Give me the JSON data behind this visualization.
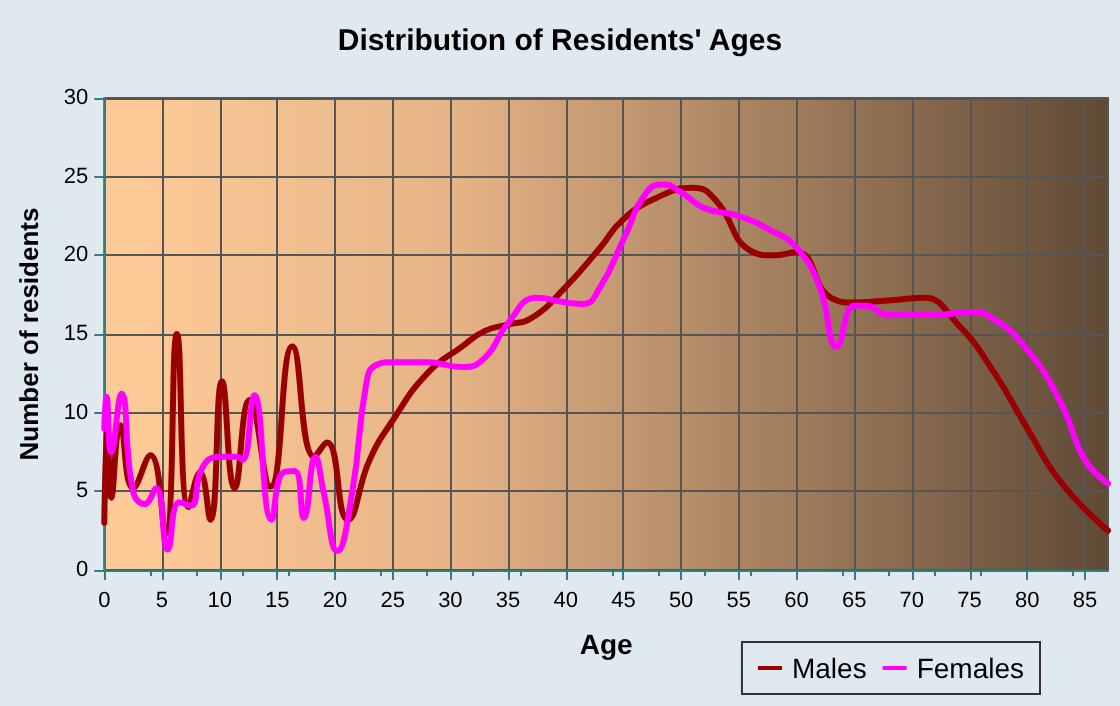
{
  "chart_data": {
    "type": "line",
    "title": "Distribution of Residents' Ages",
    "xlabel": "Age",
    "ylabel": "Number of residents",
    "xlim": [
      0,
      87
    ],
    "xticks": [
      0,
      5,
      10,
      15,
      20,
      25,
      30,
      35,
      40,
      45,
      50,
      55,
      60,
      65,
      70,
      75,
      80,
      85
    ],
    "ylim": [
      0,
      30
    ],
    "yticks": [
      0,
      5,
      10,
      15,
      20,
      25,
      30
    ],
    "grid": true,
    "legend": "bottom right",
    "marker": "none",
    "line_style": "solid",
    "series": [
      {
        "name": "Males",
        "color": "#990000",
        "x": [
          0,
          0.3,
          0.6,
          1.4,
          2.5,
          4,
          5.3,
          6.3,
          7.3,
          8.3,
          9.2,
          10.2,
          11.3,
          12.6,
          14.4,
          16.3,
          18.2,
          19.3,
          21.1,
          23,
          25,
          28,
          31,
          33,
          35,
          37,
          40,
          43,
          45,
          48,
          51,
          53,
          56,
          58,
          60,
          63,
          65,
          69,
          71,
          74,
          77,
          80,
          83,
          87
        ],
        "values": [
          3,
          9,
          4.6,
          9.2,
          5.2,
          7.3,
          2.3,
          15,
          4,
          6.2,
          3.2,
          12,
          5.2,
          10.8,
          5.3,
          14.2,
          7.2,
          8.1,
          3.2,
          7,
          9.5,
          12.5,
          14.2,
          15.2,
          15.6,
          16,
          18,
          20.5,
          22.3,
          23.7,
          24.3,
          23.5,
          20.3,
          20,
          20.2,
          17.3,
          17,
          17.2,
          17.3,
          15.6,
          12.7,
          9,
          5.5,
          2.5
        ]
      },
      {
        "name": "Females",
        "color": "#ff00ff",
        "x": [
          0,
          0.2,
          0.6,
          1.5,
          2.5,
          3.5,
          4.5,
          5.5,
          6.5,
          7.5,
          8.5,
          10,
          11.5,
          12,
          13,
          14.5,
          15.5,
          16.5,
          17.3,
          18.3,
          19,
          20.2,
          21.5,
          22.7,
          23.5,
          25,
          28,
          31,
          33,
          35,
          37.5,
          40,
          41.5,
          43,
          45,
          47,
          48.5,
          50,
          52,
          55,
          58,
          60,
          62,
          63.5,
          65,
          66,
          68,
          72,
          75,
          77,
          80,
          83,
          85,
          87
        ],
        "values": [
          9,
          11,
          7.5,
          11.2,
          5,
          4.2,
          5.2,
          1.3,
          4.3,
          4.1,
          6.5,
          7.2,
          7.2,
          7,
          11.1,
          3.2,
          6.2,
          6.3,
          3.3,
          7.2,
          5,
          1.2,
          5,
          11.8,
          13,
          13.2,
          13.2,
          12.9,
          13.5,
          15.7,
          17.3,
          17,
          16.9,
          18,
          21,
          24,
          24.5,
          24,
          23,
          22.5,
          21.5,
          20.5,
          18,
          14.2,
          16.8,
          16.8,
          16.2,
          16.2,
          16.4,
          16,
          14,
          10.5,
          7,
          5.5
        ]
      }
    ]
  }
}
